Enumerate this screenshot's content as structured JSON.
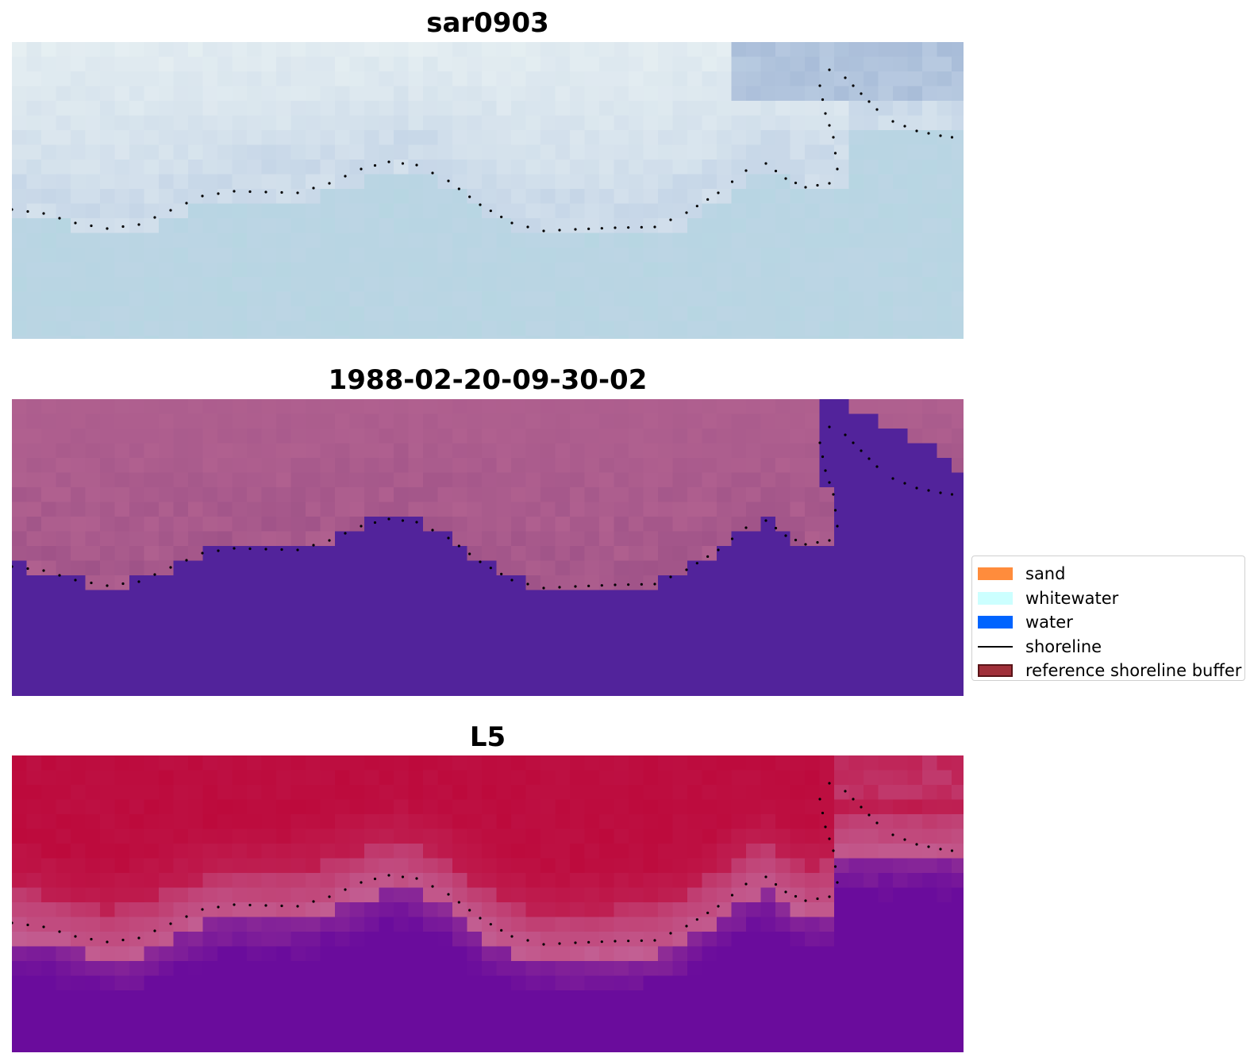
{
  "panels": [
    {
      "title": "sar0903",
      "style": "sar",
      "colors": {
        "top": "#e6eff2",
        "mid": "#c2d3e6",
        "bottom": "#b6d6e2",
        "accent": "#a8bcd8"
      }
    },
    {
      "title": "1988-02-20-09-30-02",
      "style": "classified",
      "colors": {
        "land": "#b0608f",
        "landDark": "#9a4f86",
        "water": "#52239b"
      }
    },
    {
      "title": "L5",
      "style": "index",
      "colors": {
        "high": "#bd0a3c",
        "edge": "#c25a8e",
        "low": "#6a0c9c"
      }
    }
  ],
  "legend": {
    "items": [
      {
        "label": "sand",
        "color": "#ff8c3c",
        "kind": "patch"
      },
      {
        "label": "whitewater",
        "color": "#ccffff",
        "kind": "patch"
      },
      {
        "label": "water",
        "color": "#0064ff",
        "kind": "patch"
      },
      {
        "label": "shoreline",
        "color": "#000000",
        "kind": "line"
      },
      {
        "label": "reference shoreline buffer",
        "color": "#a0303a",
        "kind": "buffer"
      }
    ]
  }
}
